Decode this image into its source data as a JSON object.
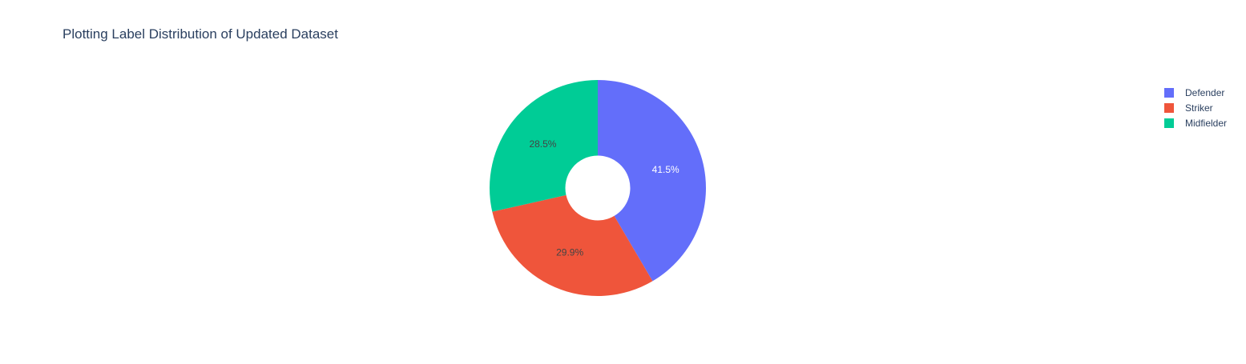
{
  "chart_data": {
    "type": "pie",
    "title": "Plotting Label Distribution of Updated Dataset",
    "hole": 0.3,
    "direction": "clockwise",
    "rotation_start": "top",
    "categories": [
      "Defender",
      "Striker",
      "Midfielder"
    ],
    "values": [
      41.5,
      29.9,
      28.5
    ],
    "labels_text": [
      "41.5%",
      "29.9%",
      "28.5%"
    ],
    "colors": [
      "#636efa",
      "#ef553b",
      "#00cc96"
    ],
    "label_colors": [
      "#ffffff",
      "#444444",
      "#444444"
    ],
    "legend_position": "top-right"
  }
}
